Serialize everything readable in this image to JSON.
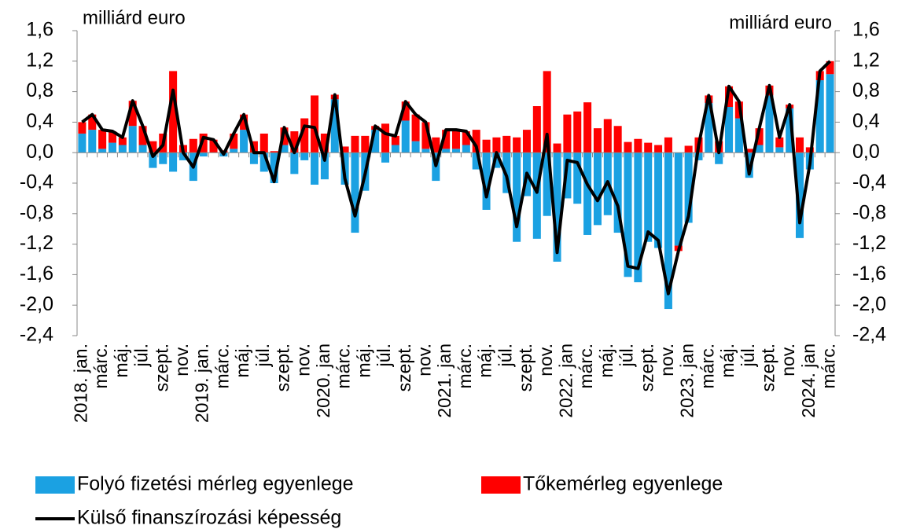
{
  "chart_data": {
    "type": "bar",
    "y_label": "milliárd euro",
    "y2_label": "milliárd euro",
    "categories": [
      "2018. jan.",
      null,
      "márc.",
      null,
      "máj.",
      null,
      "júl.",
      null,
      "szept.",
      null,
      "nov.",
      null,
      "2019. jan.",
      null,
      "márc.",
      null,
      "máj.",
      null,
      "júl.",
      null,
      "szept.",
      null,
      "nov.",
      null,
      "2020. jan",
      null,
      "márc.",
      null,
      "máj.",
      null,
      "júl.",
      null,
      "szept.",
      null,
      "nov.",
      null,
      "2021. jan",
      null,
      "márc.",
      null,
      "máj.",
      null,
      "júl.",
      null,
      "szept.",
      null,
      "nov.",
      null,
      "2022. jan",
      null,
      "márc.",
      null,
      "máj.",
      null,
      "júl.",
      null,
      "szept.",
      null,
      "nov.",
      null,
      "2023. jan",
      null,
      "márc.",
      null,
      "máj.",
      null,
      "júl.",
      null,
      "szept.",
      null,
      "nov.",
      null,
      "2024. jan",
      null,
      "márc."
    ],
    "series": [
      {
        "name": "Folyó fizetési mérleg egyenlege",
        "color": "#1ba1e2",
        "type": "bar",
        "values": [
          0.25,
          0.3,
          0.05,
          0.13,
          0.1,
          0.35,
          0.1,
          -0.2,
          -0.15,
          -0.25,
          -0.1,
          -0.37,
          -0.05,
          0.0,
          -0.05,
          0.05,
          0.3,
          -0.15,
          -0.25,
          -0.4,
          0.1,
          -0.28,
          -0.1,
          -0.42,
          -0.35,
          0.7,
          -0.42,
          -1.05,
          -0.5,
          0.3,
          -0.13,
          0.1,
          0.42,
          0.15,
          0.05,
          -0.37,
          0.05,
          0.05,
          0.1,
          -0.22,
          -0.75,
          -0.2,
          -0.53,
          -1.17,
          -0.57,
          -1.13,
          -0.83,
          -1.43,
          -0.6,
          -0.67,
          -1.08,
          -0.95,
          -0.82,
          -1.05,
          -1.63,
          -1.7,
          -1.17,
          -1.25,
          -2.05,
          -1.22,
          -0.92,
          -0.1,
          0.65,
          -0.15,
          0.6,
          0.45,
          -0.33,
          0.1,
          0.75,
          0.07,
          0.58,
          -1.12,
          -0.22,
          0.95,
          1.03
        ]
      },
      {
        "name": "Tőkemérleg egyenlege",
        "color": "#ff0000",
        "type": "bar",
        "values": [
          0.15,
          0.2,
          0.25,
          0.15,
          0.1,
          0.33,
          0.25,
          0.15,
          0.25,
          1.07,
          0.1,
          0.18,
          0.25,
          0.17,
          0.03,
          0.2,
          0.2,
          0.15,
          0.25,
          0.02,
          0.23,
          0.28,
          0.45,
          0.75,
          0.25,
          0.06,
          0.08,
          0.22,
          0.22,
          0.05,
          0.38,
          0.12,
          0.25,
          0.35,
          0.35,
          0.2,
          0.25,
          0.25,
          0.18,
          0.3,
          0.17,
          0.2,
          0.22,
          0.2,
          0.3,
          0.61,
          1.07,
          0.12,
          0.5,
          0.54,
          0.66,
          0.32,
          0.44,
          0.35,
          0.14,
          0.18,
          0.13,
          0.1,
          0.2,
          -0.07,
          0.09,
          0.2,
          0.1,
          0.15,
          0.27,
          0.22,
          0.05,
          0.22,
          0.13,
          0.13,
          0.05,
          0.2,
          0.07,
          0.12,
          0.17
        ]
      },
      {
        "name": "Külső finanszírozási képesség",
        "color": "#000000",
        "type": "line",
        "values": [
          0.4,
          0.5,
          0.3,
          0.28,
          0.2,
          0.68,
          0.35,
          -0.05,
          0.1,
          0.82,
          0.0,
          -0.19,
          0.2,
          0.17,
          -0.02,
          0.25,
          0.5,
          0.0,
          0.0,
          -0.38,
          0.33,
          0.0,
          0.35,
          0.33,
          -0.1,
          0.76,
          -0.34,
          -0.83,
          -0.28,
          0.35,
          0.25,
          0.22,
          0.67,
          0.5,
          0.4,
          -0.17,
          0.3,
          0.3,
          0.28,
          0.08,
          -0.58,
          0.0,
          -0.31,
          -0.97,
          -0.27,
          -0.52,
          0.24,
          -1.31,
          -0.1,
          -0.13,
          -0.42,
          -0.63,
          -0.38,
          -0.7,
          -1.49,
          -1.52,
          -1.04,
          -1.15,
          -1.85,
          -1.29,
          -0.83,
          0.1,
          0.75,
          0.0,
          0.87,
          0.67,
          -0.28,
          0.32,
          0.88,
          0.2,
          0.63,
          -0.92,
          -0.15,
          1.07,
          1.2
        ]
      }
    ],
    "ylim": [
      -2.4,
      1.6
    ],
    "yticks": [
      {
        "value": 1.6,
        "label": "1,6"
      },
      {
        "value": 1.2,
        "label": "1,2"
      },
      {
        "value": 0.8,
        "label": "0,8"
      },
      {
        "value": 0.4,
        "label": "0,4"
      },
      {
        "value": 0,
        "label": "0,0"
      },
      {
        "value": -0.4,
        "label": "-0,4"
      },
      {
        "value": -0.8,
        "label": "-0,8"
      },
      {
        "value": -1.2,
        "label": "-1,2"
      },
      {
        "value": -1.6,
        "label": "-1,6"
      },
      {
        "value": -2.0,
        "label": "-2,0"
      },
      {
        "value": -2.4,
        "label": "-2,4"
      }
    ],
    "y2lim": [
      -2.4,
      1.6
    ],
    "y2ticks": [
      {
        "value": 1.6,
        "label": "1,6"
      },
      {
        "value": 1.2,
        "label": "1,2"
      },
      {
        "value": 0.8,
        "label": "0,8"
      },
      {
        "value": 0.4,
        "label": "0,4"
      },
      {
        "value": 0,
        "label": "0,0"
      },
      {
        "value": -0.4,
        "label": "-0,4"
      },
      {
        "value": -0.8,
        "label": "-0,8"
      },
      {
        "value": -1.2,
        "label": "-1,2"
      },
      {
        "value": -1.6,
        "label": "-1,6"
      },
      {
        "value": -2.0,
        "label": "-2,0"
      },
      {
        "value": -2.4,
        "label": "-2,4"
      }
    ],
    "grid": false,
    "legend": "bottom"
  }
}
